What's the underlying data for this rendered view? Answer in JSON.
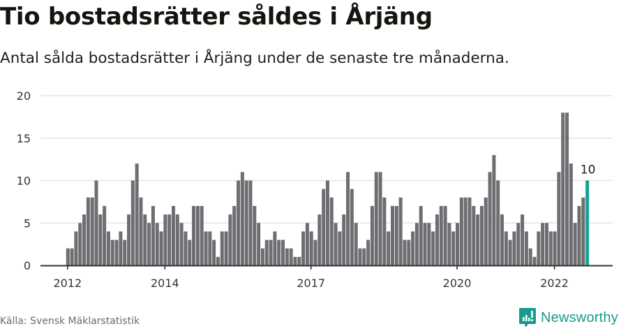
{
  "header": {
    "title": "Tio bostadsrätter såldes i Årjäng",
    "subtitle": "Antal sålda bostadsrätter i Årjäng under de senaste tre månaderna."
  },
  "footer": {
    "source": "Källa: Svensk Mäklarstatistik",
    "brand": "Newsworthy"
  },
  "colors": {
    "bar": "#6e6d72",
    "highlight": "#12a497",
    "grid": "#e3e3e3",
    "axis": "#333333",
    "brand": "#1a9a8e"
  },
  "chart_data": {
    "type": "bar",
    "title": "Tio bostadsrätter såldes i Årjäng",
    "subtitle": "Antal sålda bostadsrätter i Årjäng under de senaste tre månaderna.",
    "xlabel": "",
    "ylabel": "",
    "ylim": [
      0,
      20
    ],
    "yticks": [
      0,
      5,
      10,
      15,
      20
    ],
    "grid": true,
    "legend": null,
    "x_start": "2012-01",
    "x_end": "2022-09",
    "frequency": "monthly",
    "xtick_labels": [
      {
        "label": "2012",
        "month_index": 0
      },
      {
        "label": "2014",
        "month_index": 24
      },
      {
        "label": "2017",
        "month_index": 60
      },
      {
        "label": "2020",
        "month_index": 96
      },
      {
        "label": "2022",
        "month_index": 120
      }
    ],
    "values": [
      2,
      2,
      4,
      5,
      6,
      8,
      8,
      10,
      6,
      7,
      4,
      3,
      3,
      4,
      3,
      6,
      10,
      12,
      8,
      6,
      5,
      7,
      5,
      4,
      6,
      6,
      7,
      6,
      5,
      4,
      3,
      7,
      7,
      7,
      4,
      4,
      3,
      1,
      4,
      4,
      6,
      7,
      10,
      11,
      10,
      10,
      7,
      5,
      2,
      3,
      3,
      4,
      3,
      3,
      2,
      2,
      1,
      1,
      4,
      5,
      4,
      3,
      6,
      9,
      10,
      8,
      5,
      4,
      6,
      11,
      9,
      5,
      2,
      2,
      3,
      7,
      11,
      11,
      8,
      4,
      7,
      7,
      8,
      3,
      3,
      4,
      5,
      7,
      5,
      5,
      4,
      6,
      7,
      7,
      5,
      4,
      5,
      8,
      8,
      8,
      7,
      6,
      7,
      8,
      11,
      13,
      10,
      6,
      4,
      3,
      4,
      5,
      6,
      4,
      2,
      1,
      4,
      5,
      5,
      4,
      4,
      11,
      18,
      18,
      12,
      5,
      7,
      8,
      10
    ],
    "highlight": {
      "month_index": 128,
      "label": "10"
    }
  }
}
